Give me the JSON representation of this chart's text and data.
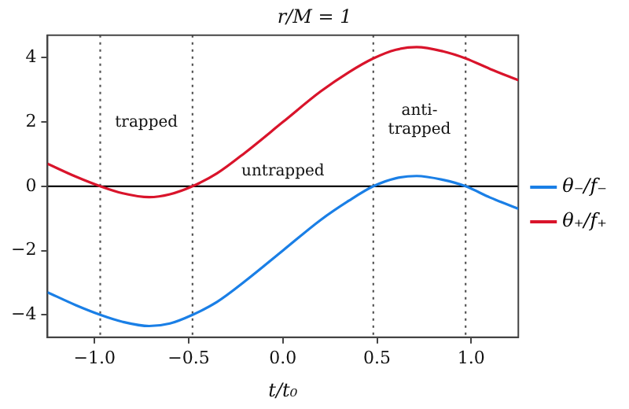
{
  "chart_data": {
    "type": "line",
    "title": "r/M = 1",
    "xlabel": "t/t₀",
    "xlim": [
      -1.25,
      1.25
    ],
    "ylim": [
      -4.7,
      4.7
    ],
    "xticks": [
      {
        "value": -1,
        "label": "−1.0"
      },
      {
        "value": -0.5,
        "label": "−0.5"
      },
      {
        "value": 0,
        "label": "0.0"
      },
      {
        "value": 0.5,
        "label": "0.5"
      },
      {
        "value": 1,
        "label": "1.0"
      }
    ],
    "yticks": [
      {
        "value": -4,
        "label": "−4"
      },
      {
        "value": -2,
        "label": "−2"
      },
      0,
      2,
      4
    ],
    "x": [
      -1.25,
      -1.1,
      -0.97,
      -0.85,
      -0.71,
      -0.6,
      -0.48,
      -0.35,
      -0.2,
      0,
      0.2,
      0.35,
      0.48,
      0.6,
      0.71,
      0.85,
      0.97,
      1.1,
      1.25
    ],
    "series": [
      {
        "name": "θ₋/f₋",
        "color": "#1a7fe6",
        "values": [
          -3.3,
          -3.7,
          -4.0,
          -4.22,
          -4.35,
          -4.27,
          -4.0,
          -3.6,
          -2.95,
          -2.0,
          -1.05,
          -0.45,
          0,
          0.25,
          0.32,
          0.2,
          0,
          -0.35,
          -0.7
        ]
      },
      {
        "name": "θ₊/f₊",
        "color": "#d9142b",
        "values": [
          0.7,
          0.3,
          0,
          -0.22,
          -0.34,
          -0.25,
          0,
          0.4,
          1.05,
          2.0,
          2.95,
          3.55,
          3.98,
          4.25,
          4.33,
          4.2,
          3.98,
          3.65,
          3.3
        ]
      }
    ],
    "ref_lines": [
      {
        "axis": "y",
        "value": 0,
        "color": "#000000",
        "line_style": "solid"
      },
      {
        "axis": "x",
        "value": -0.97,
        "color": "#555555",
        "line_style": "dotted"
      },
      {
        "axis": "x",
        "value": -0.48,
        "color": "#555555",
        "line_style": "dotted"
      },
      {
        "axis": "x",
        "value": 0.48,
        "color": "#555555",
        "line_style": "dotted"
      },
      {
        "axis": "x",
        "value": 0.97,
        "color": "#555555",
        "line_style": "dotted"
      }
    ],
    "annotations": [
      "trapped",
      "untrapped",
      "anti-\ntrapped"
    ],
    "legend": "right",
    "marker": "none",
    "line_style": "solid",
    "grid": false
  }
}
